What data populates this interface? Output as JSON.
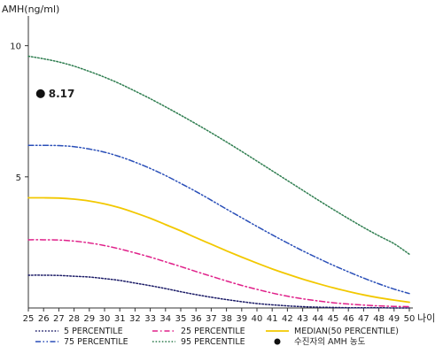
{
  "chart_data": {
    "type": "line",
    "ylabel": "AMH(ng/ml)",
    "xlabel": "나이",
    "xlim": [
      25,
      50
    ],
    "ylim": [
      0,
      11
    ],
    "x_ticks": [
      25,
      26,
      27,
      28,
      29,
      30,
      31,
      32,
      33,
      34,
      35,
      36,
      37,
      38,
      39,
      40,
      41,
      42,
      43,
      44,
      45,
      46,
      47,
      48,
      49,
      50
    ],
    "y_ticks": [
      5,
      10
    ],
    "x": [
      25,
      26,
      27,
      28,
      29,
      30,
      31,
      32,
      33,
      34,
      35,
      36,
      37,
      38,
      39,
      40,
      41,
      42,
      43,
      44,
      45,
      46,
      47,
      48,
      49,
      50
    ],
    "series": [
      {
        "name": "5 PERCENTILE",
        "color": "#1a1a66",
        "dash": "dotted",
        "values": [
          1.25,
          1.25,
          1.24,
          1.21,
          1.18,
          1.12,
          1.05,
          0.95,
          0.85,
          0.74,
          0.62,
          0.51,
          0.41,
          0.32,
          0.24,
          0.17,
          0.12,
          0.08,
          0.05,
          0.03,
          0.02,
          0.01,
          0.01,
          0.01,
          0.0,
          0.0
        ]
      },
      {
        "name": "25 PERCENTILE",
        "color": "#e0218a",
        "dash": "dashdot",
        "values": [
          2.6,
          2.6,
          2.59,
          2.55,
          2.48,
          2.38,
          2.25,
          2.1,
          1.94,
          1.76,
          1.58,
          1.39,
          1.21,
          1.03,
          0.86,
          0.71,
          0.57,
          0.45,
          0.35,
          0.27,
          0.2,
          0.15,
          0.11,
          0.08,
          0.06,
          0.05
        ]
      },
      {
        "name": "MEDIAN(50 PERCENTILE)",
        "color": "#f2c800",
        "dash": "solid",
        "values": [
          4.2,
          4.2,
          4.19,
          4.15,
          4.08,
          3.97,
          3.82,
          3.63,
          3.42,
          3.18,
          2.94,
          2.68,
          2.43,
          2.18,
          1.94,
          1.71,
          1.49,
          1.29,
          1.1,
          0.93,
          0.77,
          0.63,
          0.5,
          0.39,
          0.3,
          0.22
        ]
      },
      {
        "name": "75 PERCENTILE",
        "color": "#2a4fb8",
        "dash": "dashdotdot",
        "values": [
          6.2,
          6.2,
          6.19,
          6.15,
          6.06,
          5.94,
          5.77,
          5.56,
          5.32,
          5.05,
          4.75,
          4.44,
          4.11,
          3.77,
          3.44,
          3.11,
          2.79,
          2.48,
          2.18,
          1.9,
          1.63,
          1.38,
          1.14,
          0.92,
          0.72,
          0.55
        ]
      },
      {
        "name": "95 PERCENTILE",
        "color": "#2e7d4f",
        "dash": "dotted",
        "values": [
          9.6,
          9.5,
          9.38,
          9.22,
          9.02,
          8.8,
          8.55,
          8.27,
          7.98,
          7.67,
          7.35,
          7.02,
          6.68,
          6.33,
          5.97,
          5.6,
          5.23,
          4.86,
          4.49,
          4.12,
          3.76,
          3.41,
          3.07,
          2.75,
          2.45,
          2.05
        ]
      }
    ],
    "points": [
      {
        "name": "수진자의 AMH 농도",
        "x": 25.8,
        "y": 8.17,
        "label": "8.17",
        "color": "#111111"
      }
    ],
    "legend": {
      "placement": "bottom",
      "entries": [
        {
          "label": "5 PERCENTILE",
          "series": 0
        },
        {
          "label": "25 PERCENTILE",
          "series": 1
        },
        {
          "label": "MEDIAN(50 PERCENTILE)",
          "series": 2
        },
        {
          "label": "75 PERCENTILE",
          "series": 3
        },
        {
          "label": "95 PERCENTILE",
          "series": 4
        },
        {
          "label": "수진자의 AMH 농도",
          "point": 0
        }
      ]
    },
    "grid": false
  }
}
